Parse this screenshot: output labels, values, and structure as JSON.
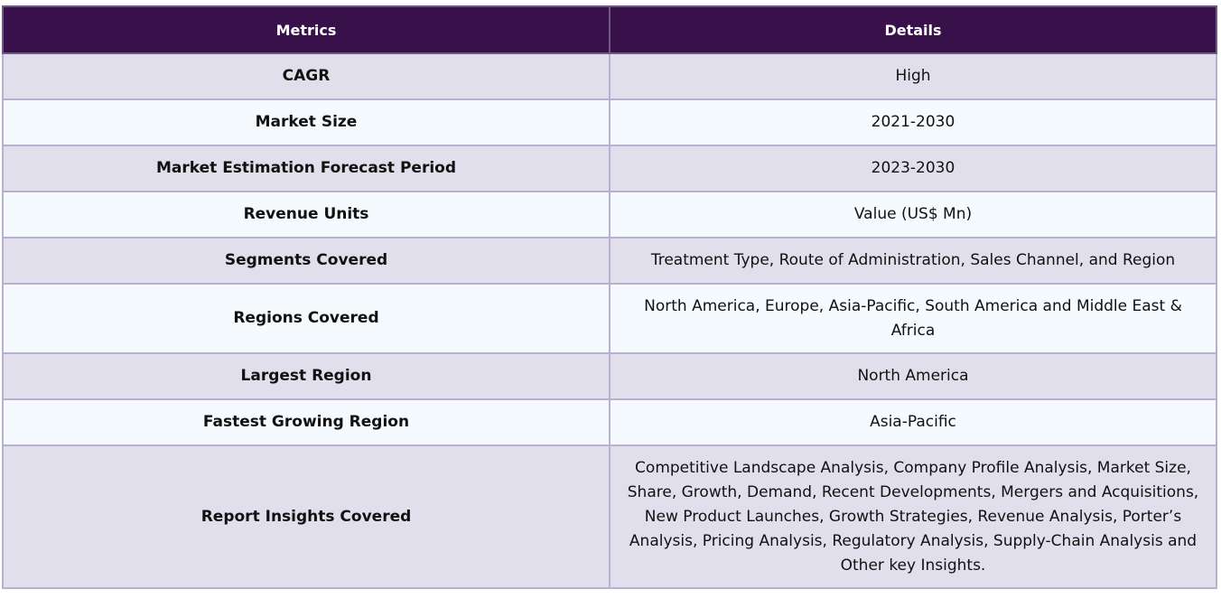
{
  "table": {
    "headers": [
      "Metrics",
      "Details"
    ],
    "rows": [
      {
        "metric": "CAGR",
        "details": "High"
      },
      {
        "metric": "Market Size",
        "details": "2021-2030"
      },
      {
        "metric": "Market Estimation Forecast Period",
        "details": "2023-2030"
      },
      {
        "metric": "Revenue Units",
        "details": "Value (US$ Mn)"
      },
      {
        "metric": "Segments Covered",
        "details": "Treatment Type, Route of Administration, Sales Channel, and Region"
      },
      {
        "metric": "Regions Covered",
        "details": "North America, Europe, Asia-Pacific, South America and Middle East & Africa"
      },
      {
        "metric": "Largest Region",
        "details": "North America"
      },
      {
        "metric": "Fastest Growing Region",
        "details": "Asia-Pacific"
      },
      {
        "metric": "Report Insights Covered",
        "details": "Competitive Landscape Analysis, Company Profile Analysis, Market Size, Share, Growth, Demand, Recent Developments, Mergers and Acquisitions, New Product Launches, Growth Strategies, Revenue Analysis, Porter’s Analysis, Pricing Analysis, Regulatory Analysis, Supply-Chain Analysis and Other key Insights."
      }
    ]
  },
  "colors": {
    "header_bg": "#38114b",
    "row_odd_bg": "#e2dfed",
    "row_even_bg": "#f4fafd",
    "border": "#b7b1cf"
  }
}
